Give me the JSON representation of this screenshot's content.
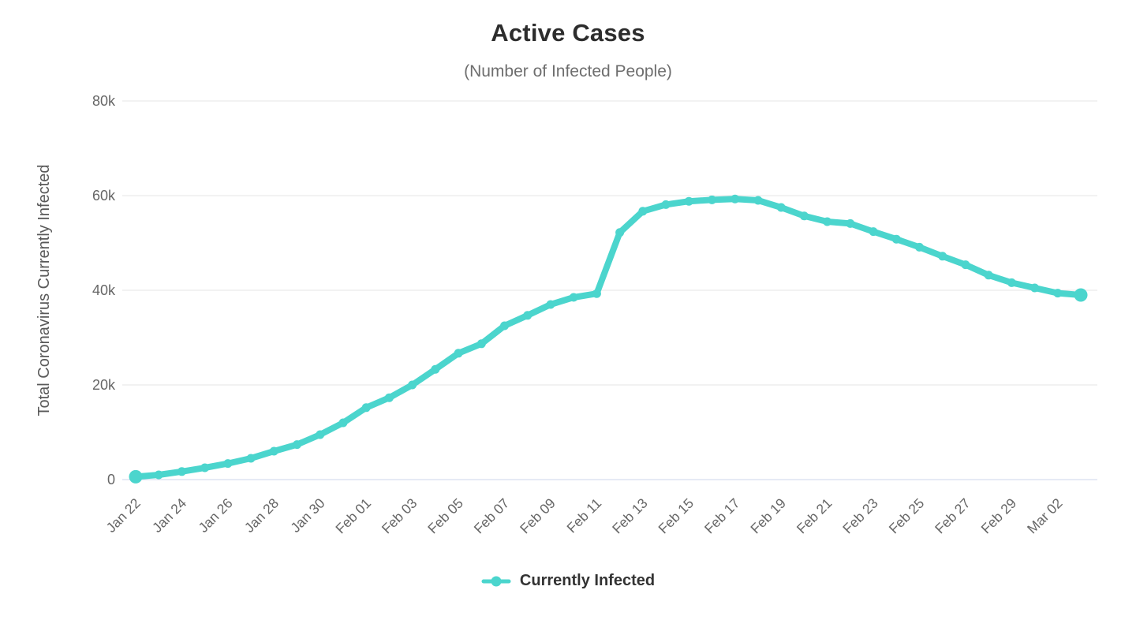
{
  "header": {
    "title": "Active Cases",
    "subtitle": "(Number of Infected People)"
  },
  "legend": {
    "items": [
      {
        "label": "Currently Infected",
        "color": "#4bd5cd"
      }
    ]
  },
  "chart_data": {
    "type": "line",
    "title": "Active Cases",
    "subtitle": "(Number of Infected People)",
    "xlabel": "",
    "ylabel": "Total Coronavirus Currently Infected",
    "ylim": [
      0,
      80000
    ],
    "yticks": [
      "0",
      "20k",
      "40k",
      "60k",
      "80k"
    ],
    "ytick_values": [
      0,
      20000,
      40000,
      60000,
      80000
    ],
    "grid": true,
    "legend_position": "bottom",
    "x_label_every": 2,
    "x": [
      "Jan 22",
      "Jan 23",
      "Jan 24",
      "Jan 25",
      "Jan 26",
      "Jan 27",
      "Jan 28",
      "Jan 29",
      "Jan 30",
      "Jan 31",
      "Feb 01",
      "Feb 02",
      "Feb 03",
      "Feb 04",
      "Feb 05",
      "Feb 06",
      "Feb 07",
      "Feb 08",
      "Feb 09",
      "Feb 10",
      "Feb 11",
      "Feb 12",
      "Feb 13",
      "Feb 14",
      "Feb 15",
      "Feb 16",
      "Feb 17",
      "Feb 18",
      "Feb 19",
      "Feb 20",
      "Feb 21",
      "Feb 22",
      "Feb 23",
      "Feb 24",
      "Feb 25",
      "Feb 26",
      "Feb 27",
      "Feb 28",
      "Feb 29",
      "Mar 01",
      "Mar 02",
      "Mar 03"
    ],
    "series": [
      {
        "name": "Currently Infected",
        "color": "#4bd5cd",
        "values": [
          600,
          1000,
          1700,
          2500,
          3400,
          4500,
          6000,
          7400,
          9500,
          12000,
          15200,
          17300,
          20000,
          23300,
          26700,
          28700,
          32500,
          34700,
          37000,
          38500,
          39300,
          52200,
          56700,
          58100,
          58800,
          59100,
          59300,
          59000,
          57500,
          55700,
          54500,
          54100,
          52400,
          50800,
          49100,
          47200,
          45400,
          43200,
          41600,
          40500,
          39400,
          39000
        ]
      }
    ],
    "colors": {
      "grid_line": "#e6e6e6",
      "axis_line": "#ccd6eb",
      "tick_label": "#666666",
      "axis_title": "#595959"
    }
  }
}
